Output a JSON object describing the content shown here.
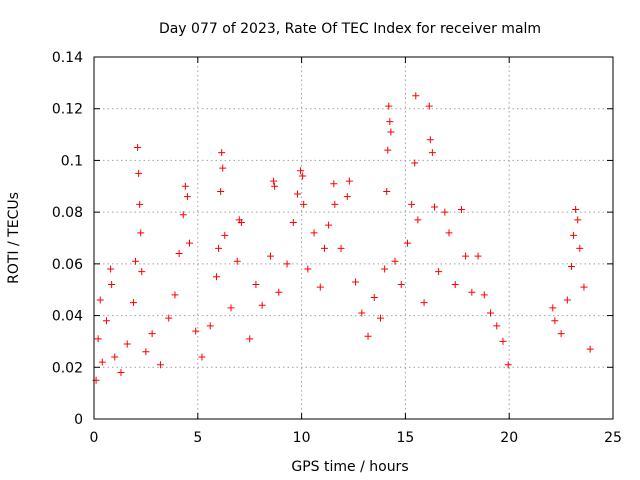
{
  "chart_data": {
    "type": "scatter",
    "title": "Day 077 of 2023, Rate Of TEC Index for receiver malm",
    "xlabel": "GPS time / hours",
    "ylabel": "ROTI / TECUs",
    "xlim": [
      0,
      25
    ],
    "ylim": [
      0,
      0.14
    ],
    "xticks": [
      "0",
      "5",
      "10",
      "15",
      "20",
      "25"
    ],
    "yticks": [
      "0",
      "0.02",
      "0.04",
      "0.06",
      "0.08",
      "0.1",
      "0.12",
      "0.14"
    ],
    "grid": true,
    "marker": "plus",
    "color": "#ff0000",
    "series": [
      {
        "points": [
          [
            0.1,
            0.015
          ],
          [
            0.2,
            0.031
          ],
          [
            0.3,
            0.046
          ],
          [
            0.4,
            0.022
          ],
          [
            0.6,
            0.038
          ],
          [
            0.8,
            0.058
          ],
          [
            0.85,
            0.052
          ],
          [
            1.0,
            0.024
          ],
          [
            1.3,
            0.018
          ],
          [
            1.6,
            0.029
          ],
          [
            1.9,
            0.045
          ],
          [
            2.0,
            0.061
          ],
          [
            2.1,
            0.105
          ],
          [
            2.15,
            0.095
          ],
          [
            2.2,
            0.083
          ],
          [
            2.25,
            0.072
          ],
          [
            2.3,
            0.057
          ],
          [
            2.5,
            0.026
          ],
          [
            2.8,
            0.033
          ],
          [
            3.2,
            0.021
          ],
          [
            3.6,
            0.039
          ],
          [
            3.9,
            0.048
          ],
          [
            4.1,
            0.064
          ],
          [
            4.3,
            0.079
          ],
          [
            4.4,
            0.09
          ],
          [
            4.5,
            0.086
          ],
          [
            4.6,
            0.068
          ],
          [
            4.9,
            0.034
          ],
          [
            5.2,
            0.024
          ],
          [
            5.6,
            0.036
          ],
          [
            5.9,
            0.055
          ],
          [
            6.0,
            0.066
          ],
          [
            6.1,
            0.088
          ],
          [
            6.15,
            0.103
          ],
          [
            6.2,
            0.097
          ],
          [
            6.3,
            0.071
          ],
          [
            6.6,
            0.043
          ],
          [
            6.9,
            0.061
          ],
          [
            7.0,
            0.077
          ],
          [
            7.1,
            0.076
          ],
          [
            7.5,
            0.031
          ],
          [
            7.8,
            0.052
          ],
          [
            8.1,
            0.044
          ],
          [
            8.5,
            0.063
          ],
          [
            8.65,
            0.092
          ],
          [
            8.7,
            0.09
          ],
          [
            8.9,
            0.049
          ],
          [
            9.3,
            0.06
          ],
          [
            9.6,
            0.076
          ],
          [
            9.8,
            0.087
          ],
          [
            9.95,
            0.096
          ],
          [
            10.05,
            0.094
          ],
          [
            10.1,
            0.083
          ],
          [
            10.3,
            0.058
          ],
          [
            10.6,
            0.072
          ],
          [
            10.9,
            0.051
          ],
          [
            11.1,
            0.066
          ],
          [
            11.3,
            0.075
          ],
          [
            11.55,
            0.091
          ],
          [
            11.6,
            0.083
          ],
          [
            11.9,
            0.066
          ],
          [
            12.2,
            0.086
          ],
          [
            12.3,
            0.092
          ],
          [
            12.6,
            0.053
          ],
          [
            12.9,
            0.041
          ],
          [
            13.2,
            0.032
          ],
          [
            13.5,
            0.047
          ],
          [
            13.8,
            0.039
          ],
          [
            14.0,
            0.058
          ],
          [
            14.1,
            0.088
          ],
          [
            14.15,
            0.104
          ],
          [
            14.2,
            0.121
          ],
          [
            14.25,
            0.115
          ],
          [
            14.3,
            0.111
          ],
          [
            14.5,
            0.061
          ],
          [
            14.8,
            0.052
          ],
          [
            15.1,
            0.068
          ],
          [
            15.3,
            0.083
          ],
          [
            15.45,
            0.099
          ],
          [
            15.5,
            0.125
          ],
          [
            15.6,
            0.077
          ],
          [
            15.9,
            0.045
          ],
          [
            16.15,
            0.121
          ],
          [
            16.2,
            0.108
          ],
          [
            16.3,
            0.103
          ],
          [
            16.4,
            0.082
          ],
          [
            16.6,
            0.057
          ],
          [
            16.9,
            0.08
          ],
          [
            17.1,
            0.072
          ],
          [
            17.4,
            0.052
          ],
          [
            17.7,
            0.081
          ],
          [
            17.9,
            0.063
          ],
          [
            18.2,
            0.049
          ],
          [
            18.5,
            0.063
          ],
          [
            18.8,
            0.048
          ],
          [
            19.1,
            0.041
          ],
          [
            19.4,
            0.036
          ],
          [
            19.7,
            0.03
          ],
          [
            19.95,
            0.021
          ],
          [
            22.1,
            0.043
          ],
          [
            22.2,
            0.038
          ],
          [
            22.5,
            0.033
          ],
          [
            22.8,
            0.046
          ],
          [
            23.0,
            0.059
          ],
          [
            23.1,
            0.071
          ],
          [
            23.2,
            0.081
          ],
          [
            23.3,
            0.077
          ],
          [
            23.4,
            0.066
          ],
          [
            23.6,
            0.051
          ],
          [
            23.9,
            0.027
          ]
        ]
      }
    ]
  }
}
